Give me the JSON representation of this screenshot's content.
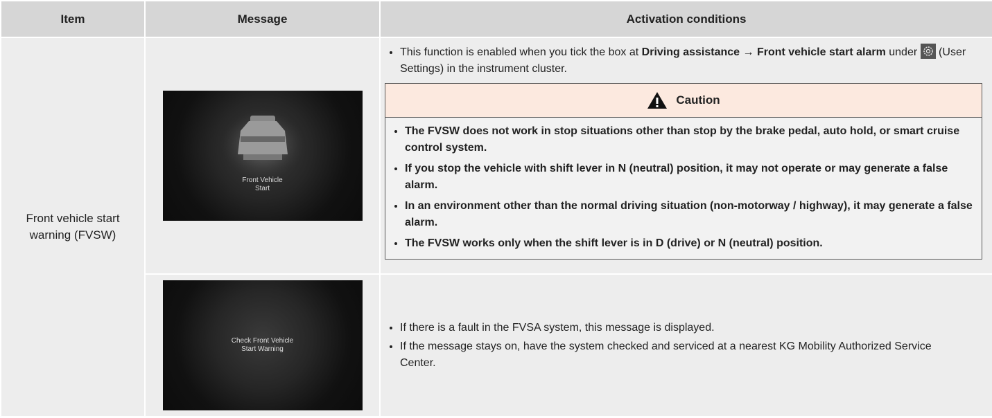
{
  "table": {
    "header": [
      "Item",
      "Message",
      "Activation conditions"
    ],
    "item": "Front vehicle start warning (FVSW)",
    "rows": [
      {
        "caption": [
          "Front Vehicle",
          "Start"
        ],
        "bullet": {
          "before": "This function is enabled when you tick the box at ",
          "bold": "Driving assistance → Front vehicle start alarm",
          "middle": " under ",
          "after": " (User Settings) in the instrument cluster."
        },
        "caution": {
          "title": "Caution",
          "items": [
            "The FVSW does not work in stop situations other than stop by the brake pedal, auto hold, or smart cruise control system.",
            "If you stop the vehicle with shift lever in N (neutral) position, it may not operate or may generate a false alarm.",
            "In an environment other than the normal driving situation (non-motorway / highway), it may generate a false alarm.",
            "The FVSW works only when the shift lever is in D (drive) or N (neutral) position."
          ]
        }
      },
      {
        "caption": [
          "Check Front Vehicle",
          "Start Warning"
        ],
        "bullets": [
          "If there is a fault in the FVSA system, this message is displayed.",
          "If the message stays on, have the system checked and serviced at a nearest KG Mobility Authorized Service Center."
        ]
      }
    ]
  }
}
